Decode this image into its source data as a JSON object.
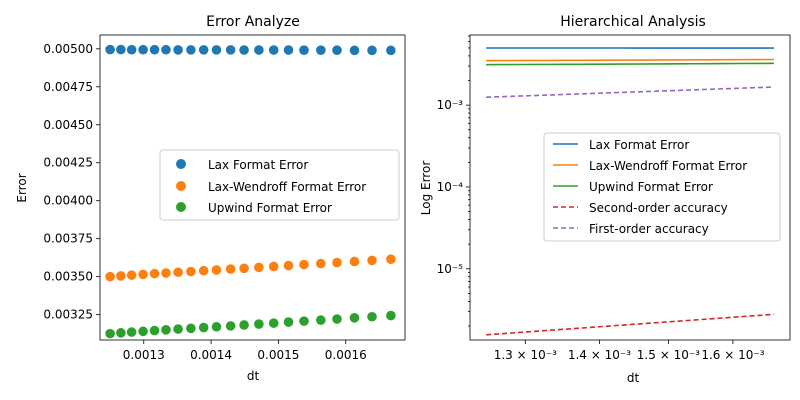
{
  "chart_data": [
    {
      "type": "scatter",
      "title": "Error Analyze",
      "xlabel": "dt",
      "ylabel": "Error",
      "xlim": [
        0.001235,
        0.001688
      ],
      "ylim": [
        0.003083,
        0.005091
      ],
      "xticks": [
        "0.0013",
        "0.0014",
        "0.0015",
        "0.0016"
      ],
      "xtick_values": [
        0.0013,
        0.0014,
        0.0015,
        0.0016
      ],
      "yticks": [
        "0.00325",
        "0.00350",
        "0.00375",
        "0.00400",
        "0.00425",
        "0.00450",
        "0.00475",
        "0.00500"
      ],
      "ytick_values": [
        0.00325,
        0.0035,
        0.00375,
        0.004,
        0.00425,
        0.0045,
        0.00475,
        0.005
      ],
      "legend_position": "center-right",
      "x": [
        0.00125,
        0.001266,
        0.001282,
        0.001299,
        0.001316,
        0.001333,
        0.001351,
        0.00137,
        0.001389,
        0.001408,
        0.001429,
        0.001449,
        0.001471,
        0.001493,
        0.001515,
        0.001538,
        0.001563,
        0.001587,
        0.001613,
        0.001639,
        0.001667
      ],
      "series": [
        {
          "name": "Lax Format Error",
          "color": "#1f77b4",
          "values": [
            0.004995,
            0.004995,
            0.004994,
            0.004994,
            0.004994,
            0.004994,
            0.004993,
            0.004993,
            0.004993,
            0.004993,
            0.004993,
            0.004992,
            0.004992,
            0.004992,
            0.004992,
            0.004991,
            0.004991,
            0.004991,
            0.00499,
            0.00499,
            0.00499
          ]
        },
        {
          "name": "Lax-Wendroff Format Error",
          "color": "#ff7f0e",
          "values": [
            0.0035,
            0.003505,
            0.00351,
            0.003515,
            0.00352,
            0.003524,
            0.003529,
            0.003534,
            0.003539,
            0.003544,
            0.00355,
            0.003555,
            0.003561,
            0.003567,
            0.003573,
            0.00358,
            0.003586,
            0.003593,
            0.0036,
            0.003607,
            0.003615
          ]
        },
        {
          "name": "Upwind Format Error",
          "color": "#2ca02c",
          "values": [
            0.003125,
            0.00313,
            0.003135,
            0.00314,
            0.003145,
            0.00315,
            0.003155,
            0.00316,
            0.003165,
            0.00317,
            0.003176,
            0.003182,
            0.003188,
            0.003194,
            0.003201,
            0.003207,
            0.003214,
            0.003221,
            0.003229,
            0.003236,
            0.003244
          ]
        }
      ]
    },
    {
      "type": "line",
      "title": "Hierarchical Analysis",
      "xlabel": "dt",
      "ylabel": "Log Error",
      "xscale": "log",
      "yscale": "log",
      "xlim": [
        0.00123,
        0.001694
      ],
      "ylim": [
        1.35e-06,
        0.0072
      ],
      "xticks": [
        "1.3 × 10⁻³",
        "1.4 × 10⁻³",
        "1.5 × 10⁻³",
        "1.6 × 10⁻³"
      ],
      "xtick_values": [
        0.0013,
        0.0014,
        0.0015,
        0.0016
      ],
      "yticks": [
        "10⁻⁵",
        "10⁻⁴",
        "10⁻³"
      ],
      "ytick_values": [
        1e-05,
        0.0001,
        0.001
      ],
      "legend_position": "center-right",
      "x": [
        0.00125,
        0.001266,
        0.001282,
        0.001299,
        0.001316,
        0.001333,
        0.001351,
        0.00137,
        0.001389,
        0.001408,
        0.001429,
        0.001449,
        0.001471,
        0.001493,
        0.001515,
        0.001538,
        0.001563,
        0.001587,
        0.001613,
        0.001639,
        0.001667
      ],
      "series": [
        {
          "name": "Lax Format Error",
          "color": "#1f77b4",
          "style": "solid",
          "values": [
            0.004995,
            0.004995,
            0.004994,
            0.004994,
            0.004994,
            0.004994,
            0.004993,
            0.004993,
            0.004993,
            0.004993,
            0.004993,
            0.004992,
            0.004992,
            0.004992,
            0.004992,
            0.004991,
            0.004991,
            0.004991,
            0.00499,
            0.00499,
            0.00499
          ]
        },
        {
          "name": "Lax-Wendroff Format Error",
          "color": "#ff7f0e",
          "style": "solid",
          "values": [
            0.0035,
            0.003505,
            0.00351,
            0.003515,
            0.00352,
            0.003524,
            0.003529,
            0.003534,
            0.003539,
            0.003544,
            0.00355,
            0.003555,
            0.003561,
            0.003567,
            0.003573,
            0.00358,
            0.003586,
            0.003593,
            0.0036,
            0.003607,
            0.003615
          ]
        },
        {
          "name": "Upwind Format Error",
          "color": "#2ca02c",
          "style": "solid",
          "values": [
            0.003125,
            0.00313,
            0.003135,
            0.00314,
            0.003145,
            0.00315,
            0.003155,
            0.00316,
            0.003165,
            0.00317,
            0.003176,
            0.003182,
            0.003188,
            0.003194,
            0.003201,
            0.003207,
            0.003214,
            0.003221,
            0.003229,
            0.003236,
            0.003244
          ]
        },
        {
          "name": "Second-order accuracy",
          "color": "#d62728",
          "style": "dashed",
          "values": [
            1.5625e-06,
            1.6026e-06,
            1.6437e-06,
            1.6874e-06,
            1.7319e-06,
            1.7769e-06,
            1.8252e-06,
            1.8769e-06,
            1.9293e-06,
            1.9825e-06,
            2.042e-06,
            2.0996e-06,
            2.1638e-06,
            2.229e-06,
            2.2952e-06,
            2.3654e-06,
            2.443e-06,
            2.5186e-06,
            2.6018e-06,
            2.6863e-06,
            2.7789e-06
          ]
        },
        {
          "name": "First-order accuracy",
          "color": "#9467bd",
          "style": "dashed",
          "values": [
            0.00125,
            0.001266,
            0.001282,
            0.001299,
            0.001316,
            0.001333,
            0.001351,
            0.00137,
            0.001389,
            0.001408,
            0.001429,
            0.001449,
            0.001471,
            0.001493,
            0.001515,
            0.001538,
            0.001563,
            0.001587,
            0.001613,
            0.001639,
            0.001667
          ]
        }
      ]
    }
  ]
}
